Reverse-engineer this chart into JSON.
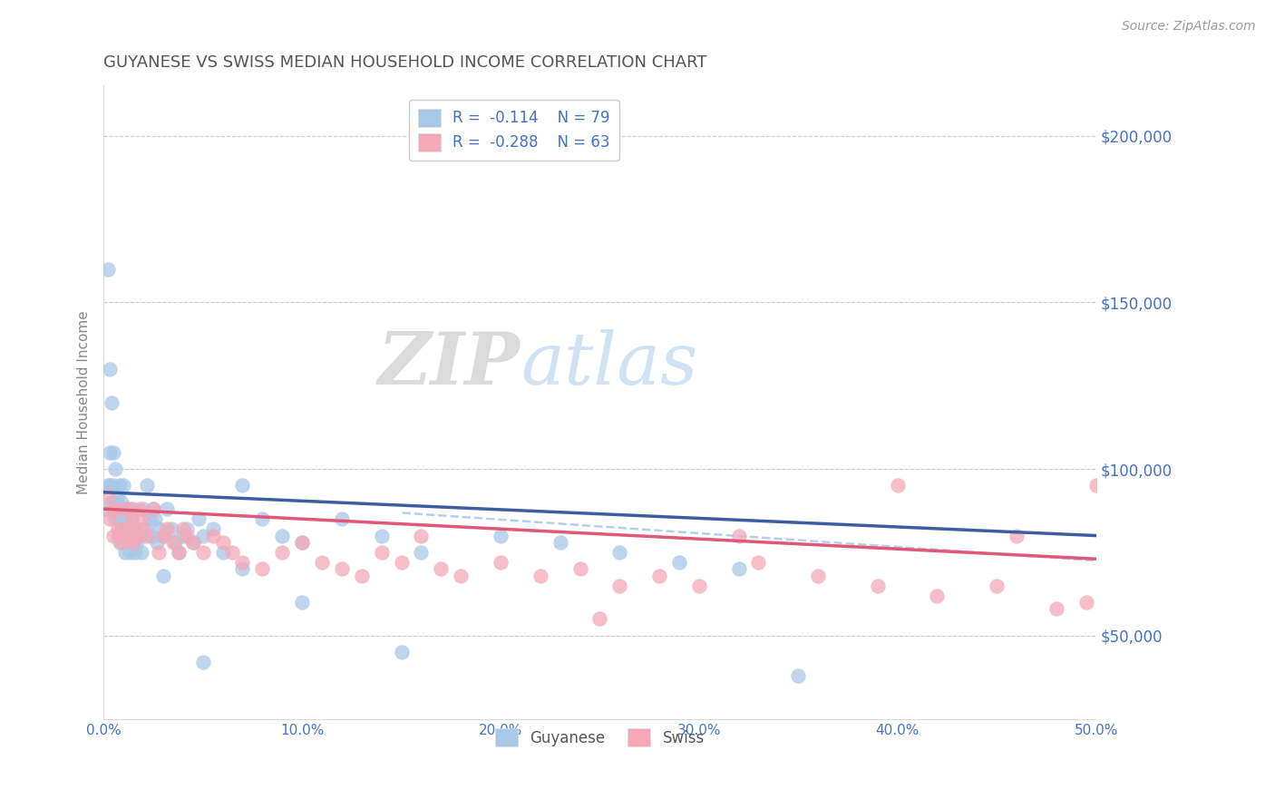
{
  "title": "GUYANESE VS SWISS MEDIAN HOUSEHOLD INCOME CORRELATION CHART",
  "source": "Source: ZipAtlas.com",
  "ylabel": "Median Household Income",
  "xlim": [
    0.0,
    0.5
  ],
  "ylim": [
    25000,
    215000
  ],
  "xticks": [
    0.0,
    0.1,
    0.2,
    0.3,
    0.4,
    0.5
  ],
  "xtick_labels": [
    "0.0%",
    "10.0%",
    "20.0%",
    "30.0%",
    "40.0%",
    "50.0%"
  ],
  "yticks": [
    50000,
    100000,
    150000,
    200000
  ],
  "ytick_labels": [
    "$50,000",
    "$100,000",
    "$150,000",
    "$200,000"
  ],
  "color_blue": "#A8C8E8",
  "color_pink": "#F4A8B8",
  "color_blue_line": "#3A5FA0",
  "color_pink_line": "#E05878",
  "color_dashed": "#A8C8E8",
  "legend_r1": "R =  -0.114",
  "legend_n1": "N = 79",
  "legend_r2": "R =  -0.288",
  "legend_n2": "N = 63",
  "legend_label1": "Guyanese",
  "legend_label2": "Swiss",
  "watermark_zip": "ZIP",
  "watermark_atlas": "atlas",
  "title_color": "#555555",
  "axis_color": "#4472C4",
  "grid_color": "#CCCCCC",
  "blue_trend_x0": 0.0,
  "blue_trend_y0": 93000,
  "blue_trend_x1": 0.5,
  "blue_trend_y1": 80000,
  "pink_trend_x0": 0.0,
  "pink_trend_y0": 88000,
  "pink_trend_x1": 0.5,
  "pink_trend_y1": 73000,
  "guyanese_x": [
    0.001,
    0.002,
    0.002,
    0.003,
    0.003,
    0.003,
    0.004,
    0.004,
    0.005,
    0.005,
    0.005,
    0.006,
    0.006,
    0.006,
    0.007,
    0.007,
    0.007,
    0.008,
    0.008,
    0.008,
    0.009,
    0.009,
    0.01,
    0.01,
    0.01,
    0.011,
    0.011,
    0.012,
    0.012,
    0.013,
    0.013,
    0.014,
    0.014,
    0.015,
    0.015,
    0.016,
    0.016,
    0.017,
    0.018,
    0.019,
    0.02,
    0.021,
    0.022,
    0.023,
    0.024,
    0.025,
    0.026,
    0.027,
    0.028,
    0.03,
    0.032,
    0.034,
    0.036,
    0.038,
    0.04,
    0.042,
    0.045,
    0.048,
    0.05,
    0.055,
    0.06,
    0.07,
    0.08,
    0.09,
    0.1,
    0.12,
    0.14,
    0.16,
    0.2,
    0.23,
    0.26,
    0.29,
    0.32,
    0.35,
    0.03,
    0.05,
    0.07,
    0.1,
    0.15
  ],
  "guyanese_y": [
    88000,
    95000,
    160000,
    130000,
    105000,
    95000,
    90000,
    120000,
    88000,
    95000,
    105000,
    90000,
    85000,
    100000,
    92000,
    88000,
    80000,
    85000,
    95000,
    78000,
    82000,
    90000,
    88000,
    80000,
    95000,
    85000,
    75000,
    88000,
    80000,
    82000,
    75000,
    78000,
    85000,
    80000,
    88000,
    75000,
    82000,
    78000,
    80000,
    75000,
    88000,
    82000,
    95000,
    85000,
    80000,
    88000,
    85000,
    78000,
    82000,
    80000,
    88000,
    82000,
    78000,
    75000,
    80000,
    82000,
    78000,
    85000,
    80000,
    82000,
    75000,
    95000,
    85000,
    80000,
    78000,
    85000,
    80000,
    75000,
    80000,
    78000,
    75000,
    72000,
    70000,
    38000,
    68000,
    42000,
    70000,
    60000,
    45000
  ],
  "swiss_x": [
    0.002,
    0.003,
    0.004,
    0.005,
    0.006,
    0.007,
    0.008,
    0.009,
    0.01,
    0.011,
    0.012,
    0.013,
    0.014,
    0.015,
    0.016,
    0.017,
    0.018,
    0.019,
    0.02,
    0.022,
    0.025,
    0.028,
    0.03,
    0.032,
    0.035,
    0.038,
    0.04,
    0.042,
    0.045,
    0.05,
    0.055,
    0.06,
    0.065,
    0.07,
    0.08,
    0.09,
    0.1,
    0.11,
    0.12,
    0.13,
    0.14,
    0.15,
    0.16,
    0.17,
    0.18,
    0.2,
    0.22,
    0.24,
    0.26,
    0.28,
    0.3,
    0.33,
    0.36,
    0.39,
    0.42,
    0.45,
    0.48,
    0.495,
    0.25,
    0.32,
    0.4,
    0.46,
    0.5
  ],
  "swiss_y": [
    92000,
    85000,
    88000,
    80000,
    88000,
    82000,
    80000,
    78000,
    88000,
    82000,
    80000,
    88000,
    85000,
    78000,
    82000,
    80000,
    88000,
    85000,
    82000,
    80000,
    88000,
    75000,
    80000,
    82000,
    78000,
    75000,
    82000,
    80000,
    78000,
    75000,
    80000,
    78000,
    75000,
    72000,
    70000,
    75000,
    78000,
    72000,
    70000,
    68000,
    75000,
    72000,
    80000,
    70000,
    68000,
    72000,
    68000,
    70000,
    65000,
    68000,
    65000,
    72000,
    68000,
    65000,
    62000,
    65000,
    58000,
    60000,
    55000,
    80000,
    95000,
    80000,
    95000
  ]
}
